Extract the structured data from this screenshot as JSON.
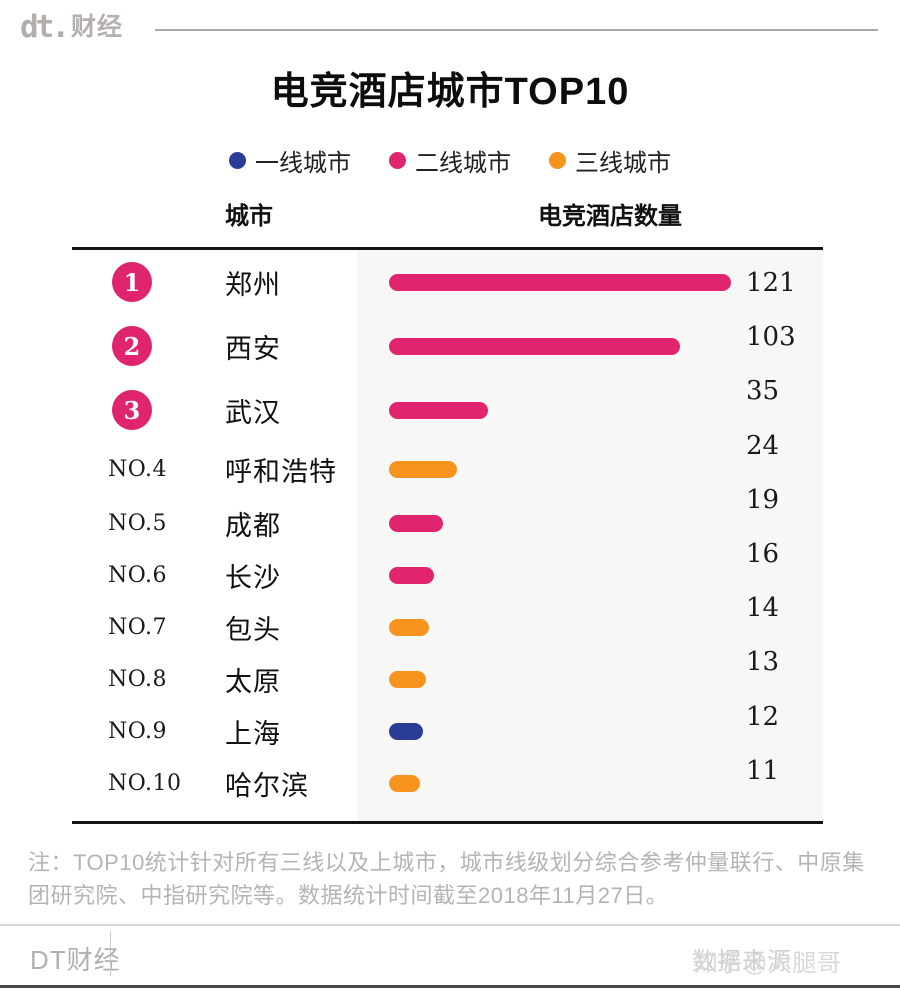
{
  "brand": {
    "logo_mark": "dt.",
    "logo_cn": "财经"
  },
  "title": "电竞酒店城市TOP10",
  "legend": [
    {
      "label": "一线城市",
      "color": "#2b3c96"
    },
    {
      "label": "二线城市",
      "color": "#e0246e"
    },
    {
      "label": "三线城市",
      "color": "#f7941e"
    }
  ],
  "columns": {
    "city": "城市",
    "count": "电竞酒店数量"
  },
  "chart_data": {
    "type": "bar",
    "orientation": "horizontal",
    "title": "电竞酒店城市TOP10",
    "xlabel": "电竞酒店数量",
    "xlim": [
      0,
      154
    ],
    "grid": false,
    "legend_position": "top",
    "categories": [
      "郑州",
      "西安",
      "武汉",
      "呼和浩特",
      "成都",
      "长沙",
      "包头",
      "太原",
      "上海",
      "哈尔滨"
    ],
    "values": [
      121,
      103,
      35,
      24,
      19,
      16,
      14,
      13,
      12,
      11
    ],
    "tiers": [
      "二线城市",
      "二线城市",
      "二线城市",
      "三线城市",
      "二线城市",
      "二线城市",
      "三线城市",
      "三线城市",
      "一线城市",
      "三线城市"
    ]
  },
  "rows": [
    {
      "rank": "1",
      "city": "郑州",
      "value": "121",
      "tier": "二线城市"
    },
    {
      "rank": "2",
      "city": "西安",
      "value": "103",
      "tier": "二线城市"
    },
    {
      "rank": "3",
      "city": "武汉",
      "value": "35",
      "tier": "二线城市"
    },
    {
      "rank": "NO.4",
      "city": "呼和浩特",
      "value": "24",
      "tier": "三线城市"
    },
    {
      "rank": "NO.5",
      "city": "成都",
      "value": "19",
      "tier": "二线城市"
    },
    {
      "rank": "NO.6",
      "city": "长沙",
      "value": "16",
      "tier": "二线城市"
    },
    {
      "rank": "NO.7",
      "city": "包头",
      "value": "14",
      "tier": "三线城市"
    },
    {
      "rank": "NO.8",
      "city": "太原",
      "value": "13",
      "tier": "三线城市"
    },
    {
      "rank": "NO.9",
      "city": "上海",
      "value": "12",
      "tier": "一线城市"
    },
    {
      "rank": "NO.10",
      "city": "哈尔滨",
      "value": "11",
      "tier": "三线城市"
    }
  ],
  "note": "注：TOP10统计针对所有三线以及上城市，城市线级划分综合参考仲量联行、中原集团研究院、中指研究院等。数据统计时间截至2018年11月27日。",
  "footer": {
    "brand": "DT财经",
    "source_text": "数据来源",
    "watermark": "知乎@大腿哥"
  },
  "colors": {
    "badge": "#e0246e",
    "panel": "#f7f7f6"
  }
}
